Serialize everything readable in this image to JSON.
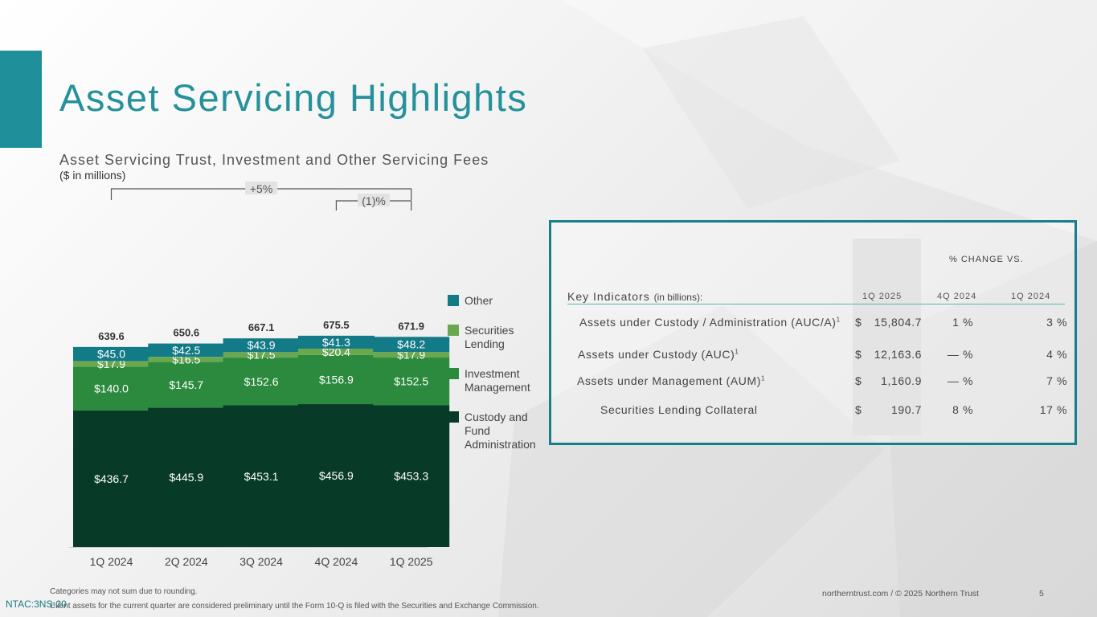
{
  "slide": {
    "title": "Asset Servicing Highlights",
    "page_number": "5",
    "footer_right": "northerntrust.com / © 2025 Northern Trust",
    "doc_code": "NTAC:3NS-20",
    "footnotes": [
      "Categories  may not sum due to rounding.",
      "Client  assets  for  the current quarter are  considered  preliminary  until the Form 10-Q is  filed  with the Securities and Exchange Commission."
    ],
    "colors": {
      "accent": "#1f8f99",
      "title": "#24919b",
      "other": "#137a87",
      "securities_lending": "#6aa84f",
      "investment_management": "#2b8a3e",
      "custody": "#083a28",
      "box_border": "#16808a"
    }
  },
  "chart_data": {
    "type": "bar",
    "stacked": true,
    "title": "Asset Servicing Trust, Investment and Other Servicing Fees",
    "subtitle": "($ in millions)",
    "categories": [
      "1Q 2024",
      "2Q 2024",
      "3Q 2024",
      "4Q 2024",
      "1Q 2025"
    ],
    "totals": [
      "639.6",
      "650.6",
      "667.1",
      "675.5",
      "671.9"
    ],
    "series": [
      {
        "name": "Custody and Fund Administration",
        "color": "#083a28",
        "values": [
          436.7,
          445.9,
          453.1,
          456.9,
          453.3
        ],
        "labels": [
          "$436.7",
          "$445.9",
          "$453.1",
          "$456.9",
          "$453.3"
        ]
      },
      {
        "name": "Investment Management",
        "color": "#2b8a3e",
        "values": [
          140.0,
          145.7,
          152.6,
          156.9,
          152.5
        ],
        "labels": [
          "$140.0",
          "$145.7",
          "$152.6",
          "$156.9",
          "$152.5"
        ]
      },
      {
        "name": "Securities Lending",
        "color": "#6aa84f",
        "values": [
          17.9,
          16.5,
          17.5,
          20.4,
          17.9
        ],
        "labels": [
          "$17.9",
          "$16.5",
          "$17.5",
          "$20.4",
          "$17.9"
        ]
      },
      {
        "name": "Other",
        "color": "#137a87",
        "values": [
          45.0,
          42.5,
          43.9,
          41.3,
          48.2
        ],
        "labels": [
          "$45.0",
          "$42.5",
          "$43.9",
          "$41.3",
          "$48.2"
        ]
      }
    ],
    "legend": {
      "position": "right",
      "entries": [
        {
          "lines": [
            "Other"
          ],
          "color": "#137a87"
        },
        {
          "lines": [
            "Securities",
            "Lending"
          ],
          "color": "#6aa84f"
        },
        {
          "lines": [
            "Investment",
            "Management"
          ],
          "color": "#2b8a3e"
        },
        {
          "lines": [
            "Custody and",
            "Fund",
            "Administration"
          ],
          "color": "#083a28"
        }
      ]
    },
    "annotations": [
      {
        "label": "+5%",
        "from": "1Q 2024",
        "to": "1Q 2025"
      },
      {
        "label": "(1)%",
        "from": "4Q 2024",
        "to": "1Q 2025"
      }
    ],
    "ylim": [
      0,
      700
    ],
    "grid": false
  },
  "kpi": {
    "pct_change_header": "% CHANGE VS.",
    "key_label": "Key Indicators",
    "key_unit": "(in billions):",
    "columns": [
      "1Q 2025",
      "4Q 2024",
      "1Q 2024"
    ],
    "rows": [
      {
        "label": "Assets under Custody / Administration (AUC/A)",
        "sup": "1",
        "dollar": "$",
        "value": "15,804.7",
        "c1": "1 %",
        "c2": "3 %"
      },
      {
        "label": "Assets under Custody (AUC)",
        "sup": "1",
        "dollar": "$",
        "value": "12,163.6",
        "c1": "— %",
        "c2": "4 %"
      },
      {
        "label": "Assets under Management (AUM)",
        "sup": "1",
        "dollar": "$",
        "value": "1,160.9",
        "c1": "— %",
        "c2": "7 %"
      },
      {
        "label": "Securities Lending Collateral",
        "sup": "",
        "dollar": "$",
        "value": "190.7",
        "c1": "8 %",
        "c2": "17 %"
      }
    ]
  }
}
